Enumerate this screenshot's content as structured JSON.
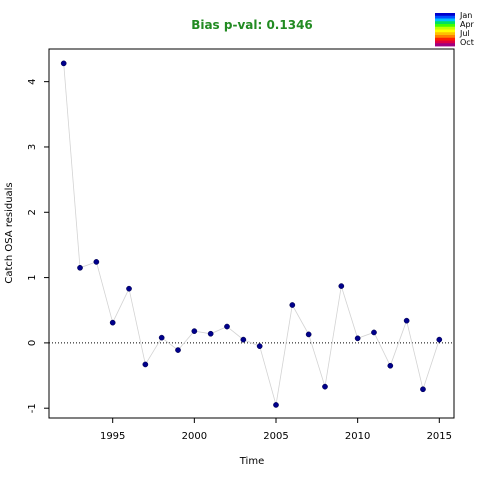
{
  "chart_data": {
    "type": "scatter",
    "title": "Bias p-val: 0.1346",
    "title_color": "#228b22",
    "xlabel": "Time",
    "ylabel": "Catch OSA residuals",
    "xlim": [
      1991.1,
      2015.9
    ],
    "ylim": [
      -1.15,
      4.5
    ],
    "x_ticks": [
      1995,
      2000,
      2005,
      2010,
      2015
    ],
    "y_ticks": [
      -1,
      0,
      1,
      2,
      3,
      4
    ],
    "reference_line": {
      "y": 0,
      "style": "dotted"
    },
    "connecting_line_color": "#d3d3d3",
    "point_color": "#00008b",
    "grid": false,
    "series": [
      {
        "x": [
          1992,
          1993,
          1994,
          1995,
          1996,
          1997,
          1998,
          1999,
          2000,
          2001,
          2002,
          2003,
          2004,
          2005,
          2006,
          2007,
          2008,
          2009,
          2010,
          2011,
          2012,
          2013,
          2014,
          2015
        ],
        "y": [
          4.28,
          1.15,
          1.24,
          0.31,
          0.83,
          -0.33,
          0.08,
          -0.11,
          0.18,
          0.14,
          0.25,
          0.05,
          -0.05,
          -0.95,
          0.58,
          0.13,
          -0.67,
          0.87,
          0.07,
          0.16,
          -0.35,
          0.34,
          -0.71,
          0.05
        ]
      }
    ],
    "legend": {
      "placement": "top-right",
      "labels": [
        "Jan",
        "Apr",
        "Jul",
        "Oct"
      ],
      "colors": [
        "#0000cd",
        "#0050ff",
        "#00c0ff",
        "#00e060",
        "#40ff00",
        "#c0ff00",
        "#ffff00",
        "#ffc000",
        "#ff8000",
        "#ff2000",
        "#e00040",
        "#a00080"
      ]
    }
  }
}
